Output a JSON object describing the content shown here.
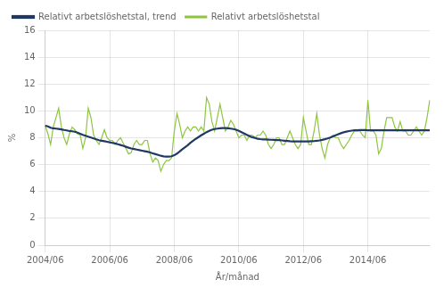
{
  "chart_data": {
    "type": "line",
    "xlabel": "År/månad",
    "ylabel": "%",
    "categories": [
      "2004/06",
      null,
      null,
      null,
      null,
      null,
      null,
      null,
      null,
      null,
      null,
      null,
      null,
      null,
      null,
      null,
      null,
      null,
      null,
      null,
      null,
      null,
      null,
      null,
      "2006/06",
      null,
      null,
      null,
      null,
      null,
      null,
      null,
      null,
      null,
      null,
      null,
      null,
      null,
      null,
      null,
      null,
      null,
      null,
      null,
      null,
      null,
      null,
      null,
      "2008/06",
      null,
      null,
      null,
      null,
      null,
      null,
      null,
      null,
      null,
      null,
      null,
      null,
      null,
      null,
      null,
      null,
      null,
      null,
      null,
      null,
      null,
      null,
      null,
      "2010/06",
      null,
      null,
      null,
      null,
      null,
      null,
      null,
      null,
      null,
      null,
      null,
      null,
      null,
      null,
      null,
      null,
      null,
      null,
      null,
      null,
      null,
      null,
      null,
      "2012/06",
      null,
      null,
      null,
      null,
      null,
      null,
      null,
      null,
      null,
      null,
      null,
      null,
      null,
      null,
      null,
      null,
      null,
      null,
      null,
      null,
      null,
      null,
      null,
      "2014/06",
      null,
      null,
      null,
      null,
      null,
      null,
      null,
      null,
      null,
      null,
      null,
      null,
      null,
      null,
      null,
      null,
      null,
      null,
      null,
      null,
      null,
      null,
      null
    ],
    "series": [
      {
        "name": "Relativt arbetslöshetstal",
        "color": "#8dc63f",
        "values": [
          8.9,
          8.3,
          7.5,
          8.8,
          9.5,
          10.2,
          8.8,
          8.0,
          7.5,
          8.3,
          8.8,
          8.6,
          8.3,
          8.2,
          7.2,
          8.0,
          10.2,
          9.5,
          8.2,
          7.8,
          7.5,
          8.0,
          8.6,
          8.0,
          7.8,
          7.8,
          7.5,
          7.8,
          8.0,
          7.6,
          7.2,
          6.8,
          6.9,
          7.5,
          7.8,
          7.5,
          7.5,
          7.8,
          7.8,
          6.8,
          6.2,
          6.5,
          6.3,
          5.5,
          6.0,
          6.3,
          6.3,
          6.5,
          8.5,
          9.8,
          9.0,
          8.0,
          8.5,
          8.8,
          8.5,
          8.8,
          8.8,
          8.5,
          8.8,
          8.5,
          11.0,
          10.5,
          9.2,
          8.5,
          9.5,
          10.5,
          9.5,
          8.5,
          8.8,
          9.3,
          9.0,
          8.5,
          8.0,
          8.2,
          8.2,
          7.8,
          8.2,
          8.2,
          8.0,
          8.2,
          8.2,
          8.5,
          8.2,
          7.5,
          7.2,
          7.5,
          8.0,
          8.0,
          7.5,
          7.5,
          8.0,
          8.5,
          8.0,
          7.5,
          7.2,
          7.5,
          9.5,
          8.5,
          7.5,
          7.5,
          8.5,
          9.8,
          8.2,
          7.2,
          6.5,
          7.5,
          8.0,
          8.2,
          8.0,
          8.0,
          7.5,
          7.2,
          7.5,
          7.8,
          8.2,
          8.5,
          8.5,
          8.5,
          8.2,
          8.0,
          10.8,
          8.5,
          8.5,
          8.2,
          6.8,
          7.2,
          8.5,
          9.5,
          9.5,
          9.5,
          8.8,
          8.5,
          9.2,
          8.5,
          8.5,
          8.2,
          8.2,
          8.5,
          8.8,
          8.5,
          8.2,
          8.5,
          9.5,
          10.8
        ]
      },
      {
        "name": "Relativt arbetslöshetstal, trend",
        "color": "#1f3864",
        "values": [
          8.9,
          8.85,
          8.75,
          8.7,
          8.68,
          8.65,
          8.62,
          8.58,
          8.55,
          8.5,
          8.48,
          8.45,
          8.38,
          8.3,
          8.22,
          8.15,
          8.08,
          8.02,
          7.95,
          7.88,
          7.82,
          7.78,
          7.74,
          7.7,
          7.66,
          7.62,
          7.58,
          7.52,
          7.46,
          7.4,
          7.33,
          7.26,
          7.2,
          7.16,
          7.12,
          7.08,
          7.04,
          7.0,
          6.96,
          6.9,
          6.84,
          6.78,
          6.72,
          6.66,
          6.62,
          6.6,
          6.6,
          6.62,
          6.7,
          6.82,
          6.98,
          7.15,
          7.3,
          7.45,
          7.62,
          7.78,
          7.92,
          8.05,
          8.18,
          8.3,
          8.42,
          8.52,
          8.6,
          8.65,
          8.68,
          8.7,
          8.72,
          8.72,
          8.7,
          8.68,
          8.65,
          8.6,
          8.52,
          8.42,
          8.32,
          8.22,
          8.12,
          8.04,
          7.98,
          7.93,
          7.9,
          7.88,
          7.87,
          7.86,
          7.85,
          7.84,
          7.83,
          7.82,
          7.8,
          7.78,
          7.76,
          7.74,
          7.73,
          7.72,
          7.72,
          7.72,
          7.72,
          7.72,
          7.73,
          7.74,
          7.75,
          7.77,
          7.8,
          7.84,
          7.89,
          7.95,
          8.02,
          8.1,
          8.18,
          8.26,
          8.34,
          8.41,
          8.46,
          8.5,
          8.53,
          8.55,
          8.56,
          8.57,
          8.57,
          8.57,
          8.56,
          8.56,
          8.56,
          8.56,
          8.56,
          8.56,
          8.56,
          8.56,
          8.56,
          8.56,
          8.56,
          8.56,
          8.56,
          8.56,
          8.56,
          8.56,
          8.56,
          8.56,
          8.56,
          8.56,
          8.56,
          8.56,
          8.56,
          8.56
        ]
      }
    ],
    "ylim": [
      0,
      16
    ],
    "yticks": [
      0,
      2,
      4,
      6,
      8,
      10,
      12,
      14,
      16
    ],
    "grid": true,
    "legend": "upper left"
  }
}
